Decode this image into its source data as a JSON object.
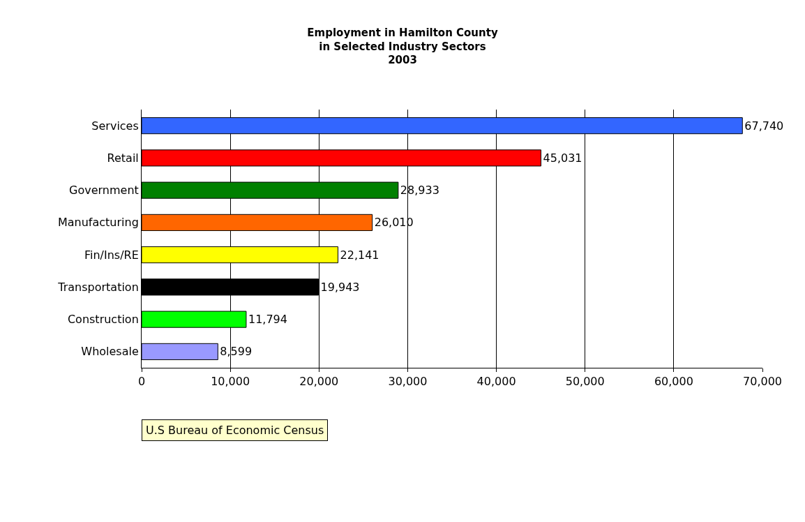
{
  "chart_data": {
    "type": "bar",
    "orientation": "horizontal",
    "title": "Employment in Hamilton County\nin Selected Industry Sectors\n2003",
    "categories": [
      "Services",
      "Retail",
      "Government",
      "Manufacturing",
      "Fin/Ins/RE",
      "Transportation",
      "Construction",
      "Wholesale"
    ],
    "values": [
      67740,
      45031,
      28933,
      26010,
      22141,
      19943,
      11794,
      8599
    ],
    "value_labels": [
      "67,740",
      "45,031",
      "28,933",
      "26,010",
      "22,141",
      "19,943",
      "11,794",
      "8,599"
    ],
    "colors": [
      "#3366ff",
      "#ff0000",
      "#008000",
      "#ff6600",
      "#ffff00",
      "#000000",
      "#00ff00",
      "#9999ff"
    ],
    "xlim": [
      0,
      70000
    ],
    "xticks": [
      0,
      {
        "value": 10000,
        "label": "10,000"
      },
      {
        "value": 20000,
        "label": "20,000"
      },
      {
        "value": 30000,
        "label": "30,000"
      },
      {
        "value": 40000,
        "label": "40,000"
      },
      {
        "value": 50000,
        "label": "50,000"
      },
      {
        "value": 60000,
        "label": "60,000"
      },
      {
        "value": 70000,
        "label": "70,000"
      }
    ],
    "grid": "x",
    "legend": false,
    "annotations": [
      "U.S Bureau of Economic Census"
    ]
  }
}
